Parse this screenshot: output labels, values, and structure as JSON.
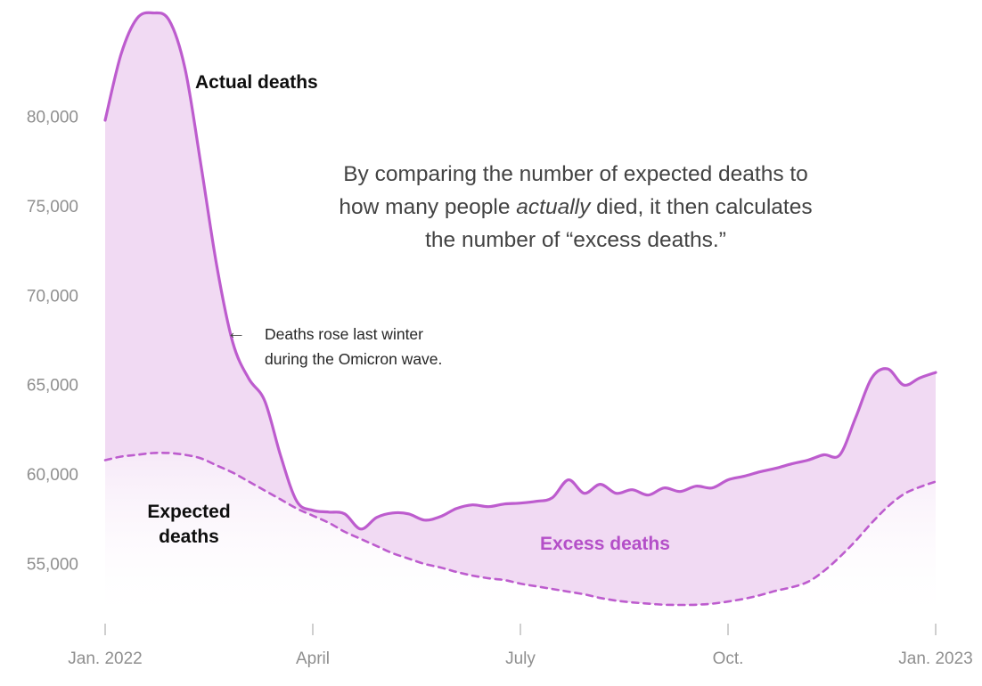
{
  "chart_data": {
    "type": "area",
    "title": "",
    "xlabel": "",
    "ylabel": "",
    "grid": false,
    "legend": "labels drawn directly on chart",
    "ylim": [
      52500,
      86000
    ],
    "x_unit": "weeks from Jan. 2022",
    "series": [
      {
        "name": "Actual deaths",
        "style": "solid",
        "values": [
          79800,
          83500,
          85500,
          85800,
          85400,
          82700,
          77300,
          71600,
          67350,
          65350,
          64100,
          61000,
          58500,
          58000,
          57900,
          57800,
          56950,
          57600,
          57850,
          57800,
          57450,
          57650,
          58100,
          58300,
          58200,
          58350,
          58400,
          58500,
          58700,
          59700,
          58950,
          59450,
          58950,
          59150,
          58850,
          59250,
          59050,
          59350,
          59250,
          59700,
          59900,
          60150,
          60350,
          60600,
          60800,
          61100,
          61100,
          63200,
          65400,
          65900,
          65000,
          65400,
          65700
        ]
      },
      {
        "name": "Expected deaths",
        "style": "dashed",
        "values": [
          60800,
          61000,
          61100,
          61200,
          61200,
          61100,
          60900,
          60500,
          60100,
          59600,
          59100,
          58600,
          58100,
          57700,
          57300,
          56800,
          56400,
          56000,
          55600,
          55300,
          55000,
          54800,
          54550,
          54350,
          54200,
          54100,
          53900,
          53750,
          53600,
          53450,
          53300,
          53100,
          52950,
          52850,
          52780,
          52720,
          52710,
          52720,
          52780,
          52900,
          53050,
          53250,
          53500,
          53700,
          54000,
          54600,
          55400,
          56300,
          57300,
          58200,
          58900,
          59300,
          59600
        ]
      }
    ],
    "x_ticks": [
      {
        "label": "Jan. 2022",
        "week": 0
      },
      {
        "label": "April",
        "week": 13
      },
      {
        "label": "July",
        "week": 26
      },
      {
        "label": "Oct.",
        "week": 39
      },
      {
        "label": "Jan. 2023",
        "week": 52
      }
    ],
    "y_ticks": [
      {
        "label": "80,000",
        "value": 80000
      },
      {
        "label": "75,000",
        "value": 75000
      },
      {
        "label": "70,000",
        "value": 70000
      },
      {
        "label": "65,000",
        "value": 65000
      },
      {
        "label": "60,000",
        "value": 60000
      },
      {
        "label": "55,000",
        "value": 55000
      }
    ],
    "annotations": {
      "actual_label": "Actual deaths",
      "expected_label": "Expected deaths",
      "excess_label": "Excess deaths",
      "note_arrow": "←",
      "note_line1": "Deaths rose last winter",
      "note_line2": "during the Omicron wave.",
      "caption_line1": "By comparing the number of expected deaths to",
      "caption_line2_pre": "how many people ",
      "caption_line2_italic": "actually",
      "caption_line2_post": " died, it then calculates",
      "caption_line3": "the number of “excess deaths.”"
    },
    "colors": {
      "line": "#bd5cce",
      "fill": "#f1daf3",
      "fade_top": "#efd6f2",
      "excess_label": "#b44fc8",
      "axis_text": "#8f8f8f",
      "tick_mark": "#cfcfcf"
    }
  }
}
